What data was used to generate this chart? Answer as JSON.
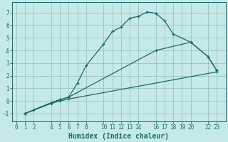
{
  "xlabel": "Humidex (Indice chaleur)",
  "bg_color": "#c5e8e8",
  "grid_color": "#a0c8c8",
  "line_color": "#1a6b6b",
  "curve1_x": [
    1,
    2,
    4,
    5,
    6,
    7,
    8,
    10,
    11,
    12,
    13,
    14,
    15,
    16,
    17,
    18,
    20,
    22,
    23
  ],
  "curve1_y": [
    -1,
    -0.7,
    -0.15,
    0.1,
    0.3,
    1.4,
    2.8,
    4.5,
    5.5,
    5.85,
    6.55,
    6.7,
    7.05,
    6.95,
    6.35,
    5.3,
    4.65,
    3.5,
    2.4
  ],
  "curve2_x": [
    1,
    4,
    5,
    6,
    16,
    20,
    22,
    23
  ],
  "curve2_y": [
    -1,
    -0.15,
    0.1,
    0.3,
    4.0,
    4.65,
    3.5,
    2.4
  ],
  "curve3_x": [
    1,
    4,
    5,
    6,
    23
  ],
  "curve3_y": [
    -1,
    -0.2,
    0.0,
    0.15,
    2.3
  ],
  "xlim": [
    -0.5,
    24.0
  ],
  "ylim": [
    -1.6,
    7.8
  ],
  "xticks": [
    0,
    1,
    2,
    4,
    5,
    6,
    7,
    8,
    10,
    11,
    12,
    13,
    14,
    16,
    17,
    18,
    19,
    20,
    22,
    23
  ],
  "yticks": [
    -1,
    0,
    1,
    2,
    3,
    4,
    5,
    6,
    7
  ],
  "xlabel_fontsize": 7,
  "tick_fontsize": 5.5
}
